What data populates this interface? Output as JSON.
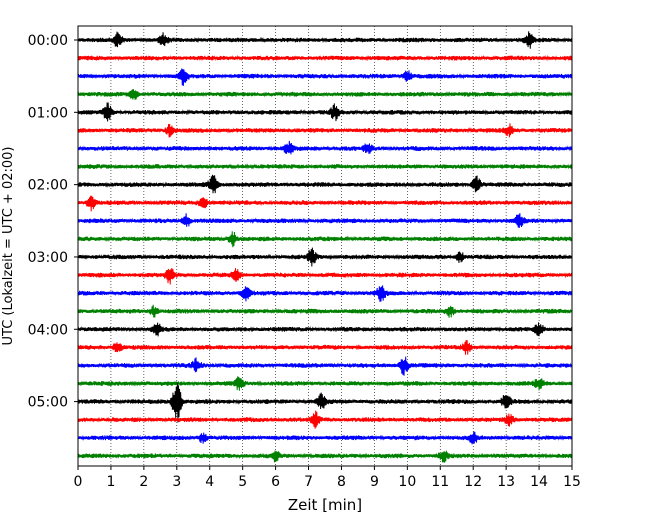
{
  "chart_data": {
    "type": "line",
    "title": "",
    "xlabel": "Zeit  [min]",
    "ylabel": "UTC (Lokalzeit = UTC + 02:00)",
    "xlim": [
      0,
      15
    ],
    "x_ticks": [
      "0",
      "1",
      "2",
      "3",
      "4",
      "5",
      "6",
      "7",
      "8",
      "9",
      "10",
      "11",
      "12",
      "13",
      "14",
      "15"
    ],
    "y_tick_labels": [
      "00:00",
      "01:00",
      "02:00",
      "03:00",
      "04:00",
      "05:00"
    ],
    "grid": "vertical dotted",
    "row_minutes": 15,
    "row_count": 24,
    "row_colors": [
      "#000000",
      "#ff0000",
      "#0000ff",
      "#008000"
    ],
    "bursts": [
      {
        "row": 0,
        "t": 1.2,
        "amp": 7
      },
      {
        "row": 0,
        "t": 2.6,
        "amp": 6
      },
      {
        "row": 0,
        "t": 13.7,
        "amp": 7
      },
      {
        "row": 2,
        "t": 3.2,
        "amp": 9
      },
      {
        "row": 2,
        "t": 10.0,
        "amp": 5
      },
      {
        "row": 3,
        "t": 1.7,
        "amp": 5
      },
      {
        "row": 4,
        "t": 0.9,
        "amp": 8
      },
      {
        "row": 4,
        "t": 7.8,
        "amp": 7
      },
      {
        "row": 5,
        "t": 2.8,
        "amp": 6
      },
      {
        "row": 5,
        "t": 13.1,
        "amp": 6
      },
      {
        "row": 6,
        "t": 6.4,
        "amp": 6
      },
      {
        "row": 6,
        "t": 8.8,
        "amp": 5
      },
      {
        "row": 8,
        "t": 4.1,
        "amp": 9
      },
      {
        "row": 8,
        "t": 12.1,
        "amp": 8
      },
      {
        "row": 9,
        "t": 0.4,
        "amp": 7
      },
      {
        "row": 9,
        "t": 3.8,
        "amp": 6
      },
      {
        "row": 10,
        "t": 3.3,
        "amp": 6
      },
      {
        "row": 10,
        "t": 13.4,
        "amp": 6
      },
      {
        "row": 11,
        "t": 4.7,
        "amp": 7
      },
      {
        "row": 12,
        "t": 7.1,
        "amp": 8
      },
      {
        "row": 12,
        "t": 11.6,
        "amp": 5
      },
      {
        "row": 13,
        "t": 2.8,
        "amp": 8
      },
      {
        "row": 13,
        "t": 4.8,
        "amp": 5
      },
      {
        "row": 14,
        "t": 5.1,
        "amp": 7
      },
      {
        "row": 14,
        "t": 9.2,
        "amp": 8
      },
      {
        "row": 15,
        "t": 2.3,
        "amp": 5
      },
      {
        "row": 15,
        "t": 11.3,
        "amp": 5
      },
      {
        "row": 16,
        "t": 2.4,
        "amp": 6
      },
      {
        "row": 16,
        "t": 14.0,
        "amp": 6
      },
      {
        "row": 17,
        "t": 1.2,
        "amp": 6
      },
      {
        "row": 17,
        "t": 11.8,
        "amp": 6
      },
      {
        "row": 18,
        "t": 3.6,
        "amp": 6
      },
      {
        "row": 18,
        "t": 9.9,
        "amp": 9
      },
      {
        "row": 19,
        "t": 4.9,
        "amp": 6
      },
      {
        "row": 19,
        "t": 14.0,
        "amp": 5
      },
      {
        "row": 20,
        "t": 3.0,
        "amp": 22
      },
      {
        "row": 20,
        "t": 7.4,
        "amp": 7
      },
      {
        "row": 20,
        "t": 13.0,
        "amp": 8
      },
      {
        "row": 21,
        "t": 7.2,
        "amp": 7
      },
      {
        "row": 21,
        "t": 13.1,
        "amp": 5
      },
      {
        "row": 22,
        "t": 3.8,
        "amp": 5
      },
      {
        "row": 22,
        "t": 12.0,
        "amp": 5
      },
      {
        "row": 23,
        "t": 6.0,
        "amp": 5
      },
      {
        "row": 23,
        "t": 11.1,
        "amp": 5
      }
    ]
  }
}
